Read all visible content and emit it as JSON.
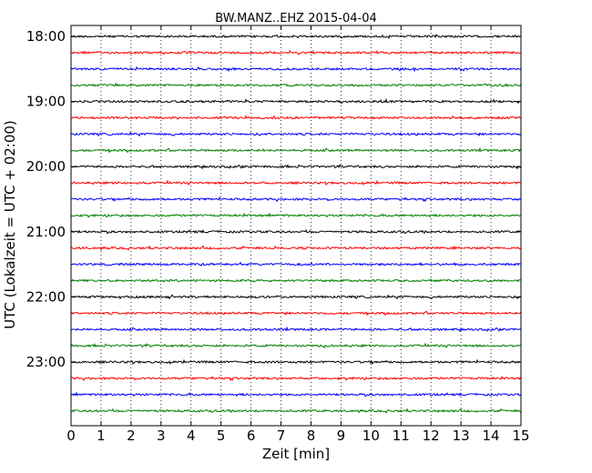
{
  "chart_data": {
    "type": "line",
    "title": "BW.MANZ..EHZ 2015-04-04",
    "xlabel": "Zeit  [min]",
    "ylabel": "UTC (Lokalzeit = UTC + 02:00)",
    "xlim": [
      0,
      15
    ],
    "xticks": [
      0,
      1,
      2,
      3,
      4,
      5,
      6,
      7,
      8,
      9,
      10,
      11,
      12,
      13,
      14,
      15
    ],
    "ytick_labels": [
      "18:00",
      "19:00",
      "20:00",
      "21:00",
      "22:00",
      "23:00"
    ],
    "trace_start_minutes": [
      0,
      15,
      30,
      45,
      60,
      75,
      90,
      105,
      120,
      135,
      150,
      165,
      180,
      195,
      210,
      225,
      240,
      255,
      270,
      285,
      300,
      315,
      330,
      345
    ],
    "trace_colors": [
      "#000000",
      "#ff0000",
      "#0000ff",
      "#008000"
    ],
    "grid_x": "dotted",
    "grid_y": false
  }
}
